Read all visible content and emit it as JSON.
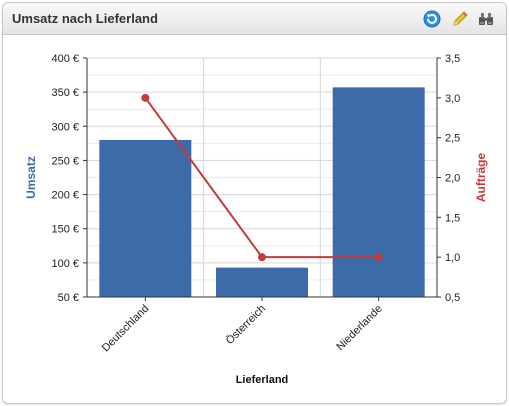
{
  "widget": {
    "title": "Umsatz nach Lieferland",
    "tools": [
      "refresh-icon",
      "pencil-icon",
      "binoculars-icon"
    ]
  },
  "colors": {
    "bar": "#3d6aa8",
    "line": "#c43b3b",
    "ylabel_left": "#3d6aa8",
    "ylabel_right": "#c43b3b"
  },
  "chart_data": {
    "type": "bar",
    "categories": [
      "Deutschland",
      "Österreich",
      "Niederlande"
    ],
    "xlabel": "Lieferland",
    "grid": true,
    "series": [
      {
        "name": "Umsatz",
        "type": "bar",
        "axis": "left",
        "values": [
          280,
          93,
          357
        ]
      },
      {
        "name": "Aufträge",
        "type": "line",
        "axis": "right",
        "values": [
          3.0,
          1.0,
          1.0
        ]
      }
    ],
    "y_left": {
      "label": "Umsatz",
      "range": [
        50,
        400
      ],
      "ticks": [
        50,
        100,
        150,
        200,
        250,
        300,
        350,
        400
      ],
      "tick_labels": [
        "50 €",
        "100 €",
        "150 €",
        "200 €",
        "250 €",
        "300 €",
        "350 €",
        "400 €"
      ]
    },
    "y_right": {
      "label": "Aufträge",
      "range": [
        0.5,
        3.5
      ],
      "ticks": [
        0.5,
        1.0,
        1.5,
        2.0,
        2.5,
        3.0,
        3.5
      ],
      "tick_labels": [
        "0,5",
        "1,0",
        "1,5",
        "2,0",
        "2,5",
        "3,0",
        "3,5"
      ]
    }
  }
}
